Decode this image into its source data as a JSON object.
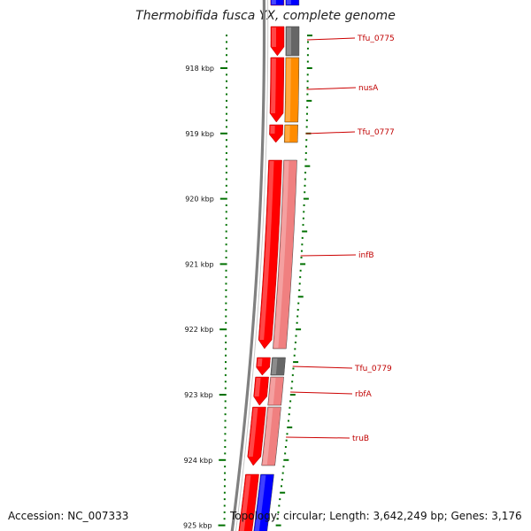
{
  "title": "Thermobifida fusca YX, complete genome",
  "footer": {
    "accession": "Accession: NC_007333",
    "topology": "Topology: circular; Length: 3,642,249 bp; Genes: 3,176"
  },
  "colors": {
    "gene_red": "#ff0000",
    "gene_pink": "#f08080",
    "gene_orange": "#ff8c00",
    "gene_gray": "#666666",
    "gene_blue": "#0000ff",
    "tick_green": "#007000",
    "label_red": "#cc0000",
    "backbone_gray": "#808080"
  },
  "scale_ticks": [
    {
      "kbp": 918,
      "label": "918 kbp"
    },
    {
      "kbp": 919,
      "label": "919 kbp"
    },
    {
      "kbp": 920,
      "label": "920 kbp"
    },
    {
      "kbp": 921,
      "label": "921 kbp"
    },
    {
      "kbp": 922,
      "label": "922 kbp"
    },
    {
      "kbp": 923,
      "label": "923 kbp"
    },
    {
      "kbp": 924,
      "label": "924 kbp"
    },
    {
      "kbp": 925,
      "label": "925 kbp"
    }
  ],
  "gene_labels": [
    {
      "name": "Tfu_0775"
    },
    {
      "name": "nusA"
    },
    {
      "name": "Tfu_0777"
    },
    {
      "name": "infB"
    },
    {
      "name": "Tfu_0779"
    },
    {
      "name": "rbfA"
    },
    {
      "name": "truB"
    }
  ]
}
